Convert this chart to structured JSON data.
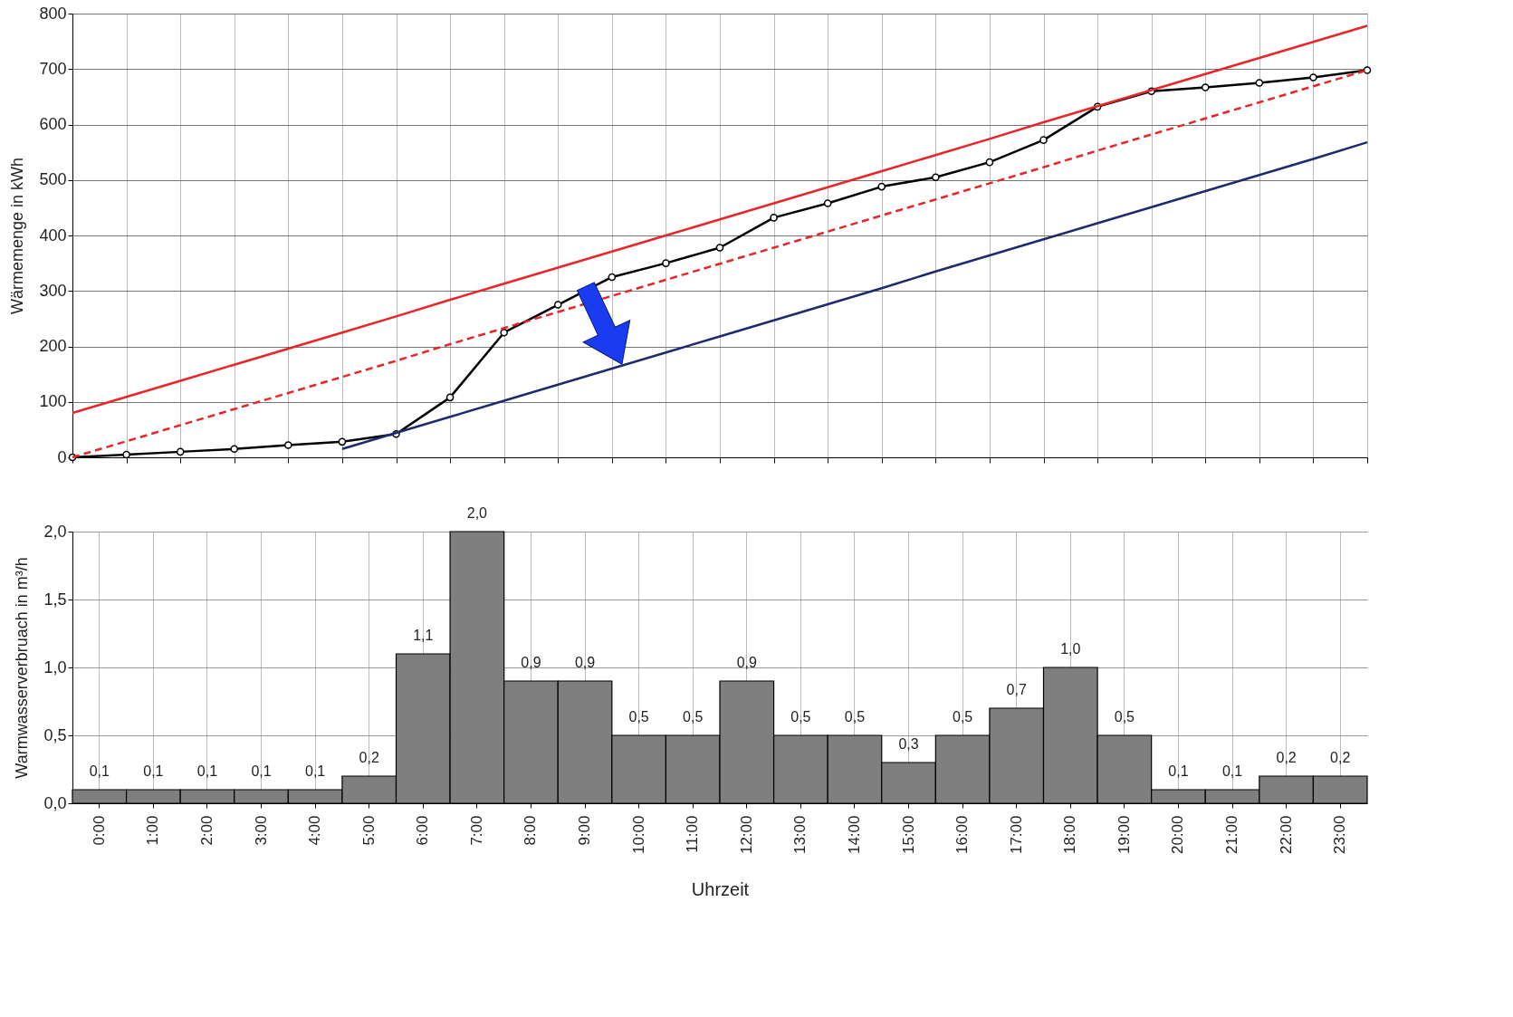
{
  "chart_data": [
    {
      "type": "line",
      "ylabel": "Wärmemenge in kWh",
      "categories": [
        null,
        null,
        null,
        null,
        null,
        null,
        null,
        null,
        null,
        null,
        null,
        null,
        null,
        null,
        null,
        null,
        null,
        null,
        null,
        null,
        null,
        null,
        null,
        null,
        null
      ],
      "ylim": [
        0,
        800
      ],
      "yticks": [
        0,
        100,
        200,
        300,
        400,
        500,
        600,
        700,
        800
      ],
      "grid": true,
      "tick_labels": "y",
      "series": [
        {
          "color": "#000000",
          "marker": "circle",
          "line_style": "solid",
          "values": [
            0,
            5,
            10,
            15,
            22,
            28,
            42,
            108,
            225,
            275,
            325,
            350,
            378,
            432,
            458,
            488,
            505,
            532,
            572,
            632,
            660,
            667,
            675,
            685,
            698
          ]
        },
        {
          "color": "#e8262a",
          "marker": "none",
          "line_style": "solid",
          "values": [
            80,
            109,
            138,
            167,
            196,
            225,
            254,
            284,
            313,
            342,
            371,
            400,
            429,
            458,
            487,
            516,
            545,
            574,
            604,
            633,
            662,
            691,
            720,
            749,
            778
          ]
        },
        {
          "color": "#e8262a",
          "marker": "none",
          "line_style": "dashed",
          "values": [
            0,
            29,
            58,
            87,
            116,
            145,
            174,
            204,
            233,
            262,
            291,
            320,
            349,
            378,
            407,
            436,
            465,
            494,
            523,
            553,
            582,
            611,
            640,
            669,
            698
          ]
        },
        {
          "color": "#1f2a6e",
          "marker": "none",
          "line_style": "solid",
          "values": [
            null,
            null,
            null,
            null,
            null,
            15,
            44,
            73,
            102,
            131,
            160,
            189,
            218,
            247,
            276,
            305,
            335,
            364,
            393,
            422,
            451,
            480,
            509,
            538,
            568
          ]
        }
      ]
    },
    {
      "type": "bar",
      "xlabel": "Uhrzeit",
      "ylabel": "Warmwasserverbruach in m³/h",
      "categories": [
        "0:00",
        "1:00",
        "2:00",
        "3:00",
        "4:00",
        "5:00",
        "6:00",
        "7:00",
        "8:00",
        "9:00",
        "10:00",
        "11:00",
        "12:00",
        "13:00",
        "14:00",
        "15:00",
        "16:00",
        "17:00",
        "18:00",
        "19:00",
        "20:00",
        "21:00",
        "22:00",
        "23:00"
      ],
      "values": [
        0.1,
        0.1,
        0.1,
        0.1,
        0.1,
        0.2,
        1.1,
        2.0,
        0.9,
        0.9,
        0.5,
        0.5,
        0.9,
        0.5,
        0.5,
        0.3,
        0.5,
        0.7,
        1.0,
        0.5,
        0.1,
        0.1,
        0.2,
        0.2
      ],
      "value_labels": [
        "0,1",
        "0,1",
        "0,1",
        "0,1",
        "0,1",
        "0,2",
        "1,1",
        "2,0",
        "0,9",
        "0,9",
        "0,5",
        "0,5",
        "0,9",
        "0,5",
        "0,5",
        "0,3",
        "0,5",
        "0,7",
        "1,0",
        "0,5",
        "0,1",
        "0,1",
        "0,2",
        "0,2"
      ],
      "color": "#7f7f7f",
      "ylim": [
        0,
        2
      ],
      "yticks": [
        {
          "value": 0,
          "label": "0,0"
        },
        {
          "value": 0.5,
          "label": "0,5"
        },
        {
          "value": 1,
          "label": "1,0"
        },
        {
          "value": 1.5,
          "label": "1,5"
        },
        {
          "value": 2,
          "label": "2,0"
        }
      ],
      "grid": true
    }
  ]
}
